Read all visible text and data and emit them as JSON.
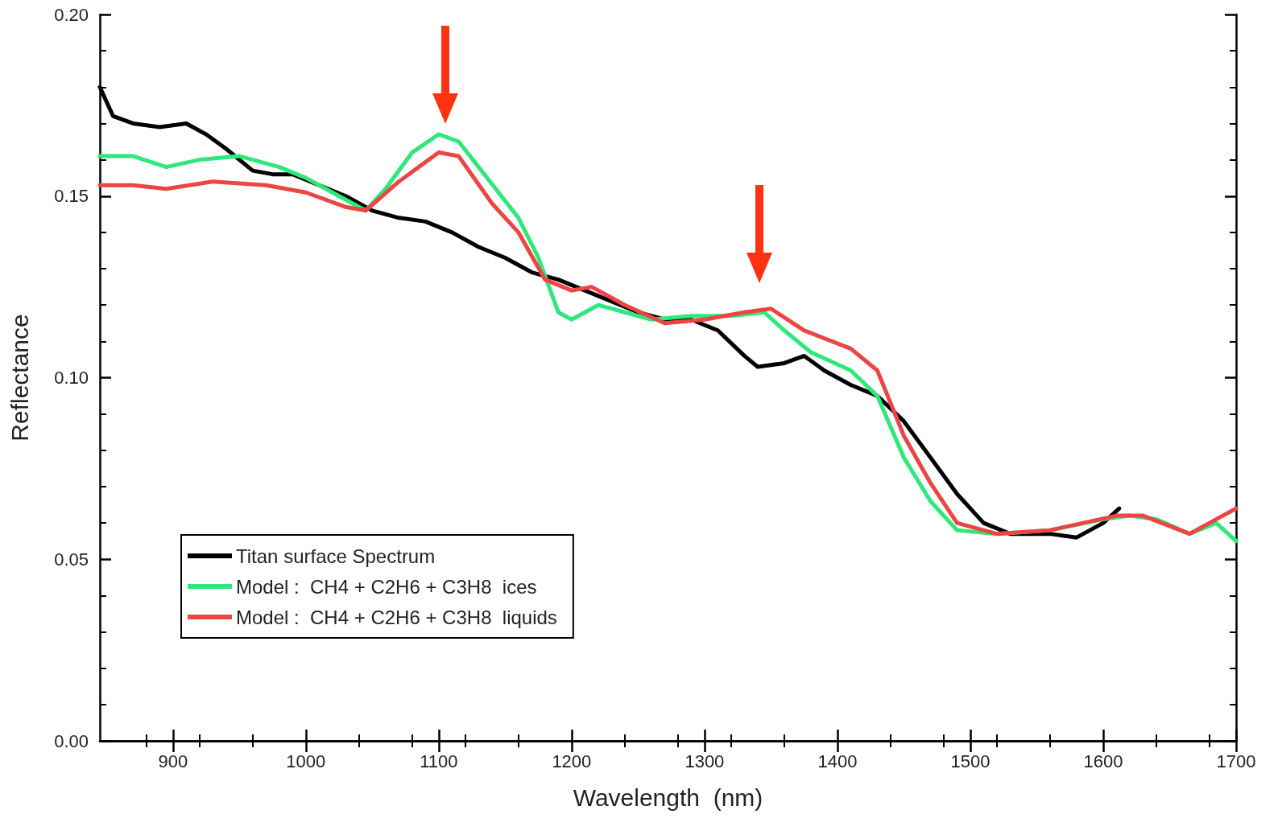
{
  "chart_data": {
    "type": "line",
    "xlabel": "Wavelength  (nm)",
    "ylabel": "Reflectance",
    "xlim": [
      845,
      1700
    ],
    "xticks": [
      900,
      1000,
      1100,
      1200,
      1300,
      1400,
      1500,
      1600,
      1700
    ],
    "ylim": [
      0,
      0.2
    ],
    "yticks": [
      {
        "value": 0,
        "label": "0.00"
      },
      {
        "value": 0.05,
        "label": "0.05"
      },
      {
        "value": 0.1,
        "label": "0.10"
      },
      {
        "value": 0.15,
        "label": "0.15"
      },
      {
        "value": 0.2,
        "label": "0.20"
      }
    ],
    "grid": false,
    "legend": "bottom left",
    "marker": "none",
    "line_style": "solid",
    "series": [
      {
        "name": "Titan surface Spectrum",
        "color": "#000000",
        "x": [
          845,
          855,
          870,
          890,
          910,
          925,
          940,
          960,
          975,
          990,
          1010,
          1030,
          1050,
          1070,
          1090,
          1110,
          1130,
          1150,
          1170,
          1190,
          1210,
          1230,
          1250,
          1270,
          1290,
          1310,
          1330,
          1340,
          1360,
          1375,
          1390,
          1410,
          1430,
          1450,
          1470,
          1490,
          1510,
          1530,
          1560,
          1580,
          1600,
          1612
        ],
        "values": [
          0.18,
          0.172,
          0.17,
          0.169,
          0.17,
          0.167,
          0.163,
          0.157,
          0.156,
          0.156,
          0.153,
          0.15,
          0.146,
          0.144,
          0.143,
          0.14,
          0.136,
          0.133,
          0.129,
          0.127,
          0.124,
          0.121,
          0.118,
          0.116,
          0.116,
          0.113,
          0.106,
          0.103,
          0.104,
          0.106,
          0.102,
          0.098,
          0.095,
          0.088,
          0.078,
          0.068,
          0.06,
          0.057,
          0.057,
          0.056,
          0.06,
          0.064
        ]
      },
      {
        "name": "Model :  CH4 + C2H6 + C3H8  ices",
        "color": "#2ee87a",
        "x": [
          845,
          870,
          895,
          920,
          950,
          980,
          1000,
          1020,
          1045,
          1060,
          1080,
          1100,
          1115,
          1130,
          1145,
          1160,
          1175,
          1190,
          1200,
          1220,
          1240,
          1260,
          1290,
          1320,
          1345,
          1360,
          1380,
          1410,
          1430,
          1450,
          1470,
          1490,
          1520,
          1560,
          1600,
          1620,
          1640,
          1665,
          1685,
          1700
        ],
        "values": [
          0.161,
          0.161,
          0.158,
          0.16,
          0.161,
          0.158,
          0.155,
          0.151,
          0.146,
          0.152,
          0.162,
          0.167,
          0.165,
          0.158,
          0.151,
          0.144,
          0.133,
          0.118,
          0.116,
          0.12,
          0.118,
          0.116,
          0.117,
          0.117,
          0.118,
          0.113,
          0.107,
          0.102,
          0.095,
          0.078,
          0.066,
          0.058,
          0.057,
          0.058,
          0.061,
          0.062,
          0.061,
          0.057,
          0.06,
          0.055
        ]
      },
      {
        "name": "Model :  CH4 + C2H6 + C3H8  liquids",
        "color": "#ee4444",
        "x": [
          845,
          870,
          895,
          930,
          970,
          1000,
          1030,
          1045,
          1070,
          1100,
          1115,
          1140,
          1160,
          1180,
          1200,
          1215,
          1240,
          1270,
          1300,
          1330,
          1350,
          1375,
          1410,
          1430,
          1450,
          1470,
          1490,
          1520,
          1560,
          1610,
          1630,
          1665,
          1685,
          1700
        ],
        "values": [
          0.153,
          0.153,
          0.152,
          0.154,
          0.153,
          0.151,
          0.147,
          0.146,
          0.154,
          0.162,
          0.161,
          0.148,
          0.14,
          0.127,
          0.124,
          0.125,
          0.12,
          0.115,
          0.116,
          0.118,
          0.119,
          0.113,
          0.108,
          0.102,
          0.084,
          0.071,
          0.06,
          0.057,
          0.058,
          0.062,
          0.062,
          0.057,
          0.061,
          0.064
        ]
      }
    ]
  }
}
